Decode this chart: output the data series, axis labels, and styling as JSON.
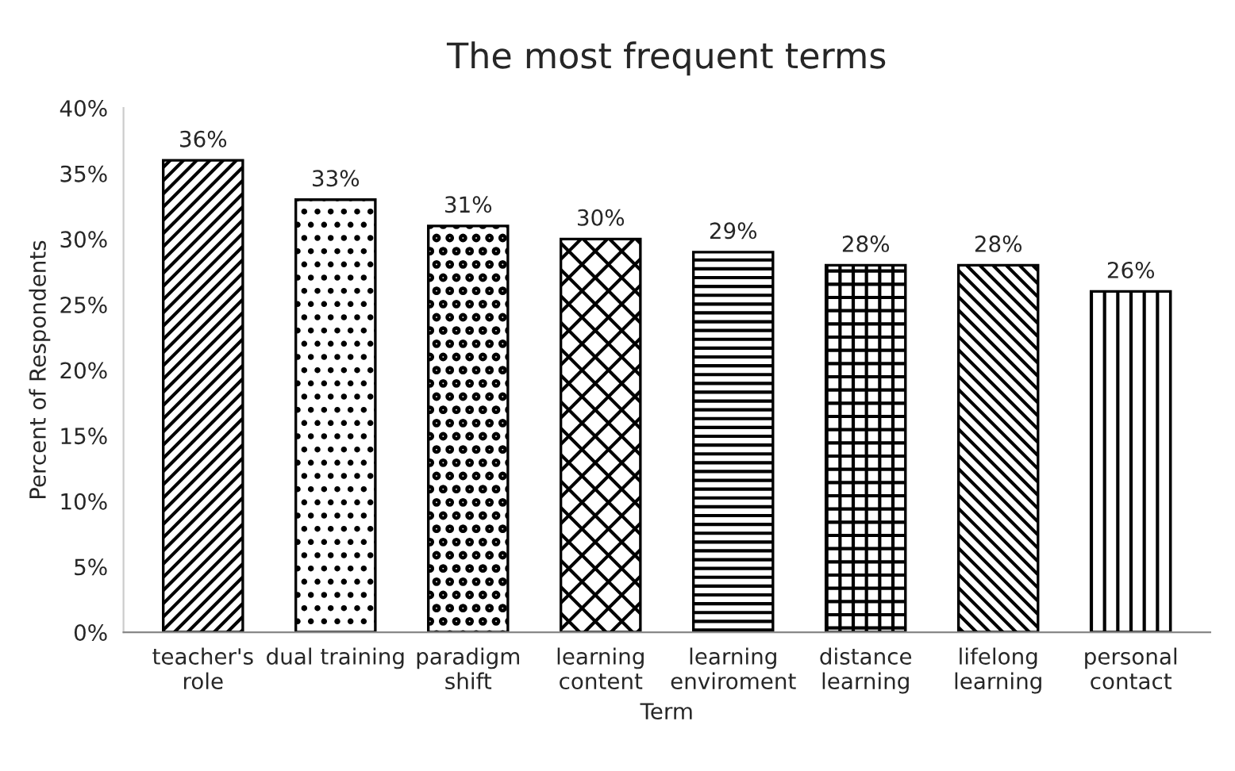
{
  "chart_data": {
    "type": "bar",
    "title": "The most frequent terms",
    "xlabel": "Term",
    "ylabel": "Percent of Respondents",
    "categories": [
      "teacher's\nrole",
      "dual training",
      "paradigm\nshift",
      "learning\ncontent",
      "learning\nenviroment",
      "distance\nlearning",
      "lifelong\nlearning",
      "personal\ncontact"
    ],
    "values": [
      36,
      33,
      31,
      30,
      29,
      28,
      28,
      26
    ],
    "value_labels": [
      "36%",
      "33%",
      "31%",
      "30%",
      "29%",
      "28%",
      "28%",
      "26%"
    ],
    "color": "#000000",
    "ylim": [
      0,
      40
    ],
    "yticks": [
      {
        "value": 0,
        "label": "0%"
      },
      {
        "value": 5,
        "label": "5%"
      },
      {
        "value": 10,
        "label": "10%"
      },
      {
        "value": 15,
        "label": "15%"
      },
      {
        "value": 20,
        "label": "20%"
      },
      {
        "value": 25,
        "label": "25%"
      },
      {
        "value": 30,
        "label": "30%"
      },
      {
        "value": 35,
        "label": "35%"
      },
      {
        "value": 40,
        "label": "40%"
      }
    ],
    "grid": false
  }
}
